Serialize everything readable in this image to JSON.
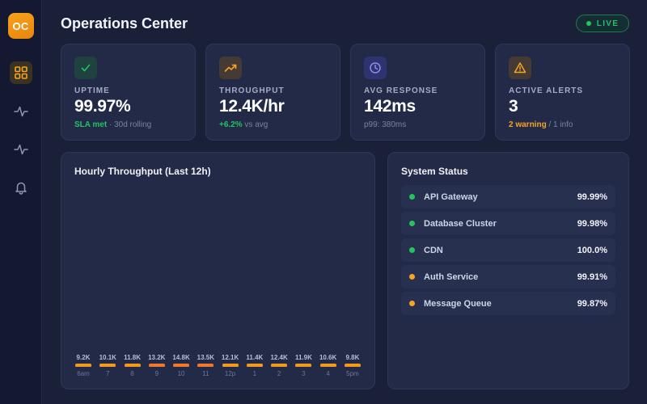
{
  "app": {
    "logo_text": "OC",
    "title": "Operations Center",
    "live_label": "LIVE"
  },
  "sidebar": {
    "items": [
      {
        "icon": "grid-icon",
        "active": true
      },
      {
        "icon": "activity-icon",
        "active": false
      },
      {
        "icon": "activity-icon",
        "active": false
      },
      {
        "icon": "bell-icon",
        "active": false
      }
    ]
  },
  "cards": [
    {
      "icon": "check-icon",
      "label": "UPTIME",
      "value": "99.97%",
      "sub_highlight": "SLA met",
      "sub_rest": " · 30d rolling",
      "highlight_color": "#22c55e"
    },
    {
      "icon": "trending-up-icon",
      "label": "THROUGHPUT",
      "value": "12.4K/hr",
      "sub_highlight": "+6.2%",
      "sub_rest": " vs avg",
      "highlight_color": "#22c55e"
    },
    {
      "icon": "clock-icon",
      "label": "AVG RESPONSE",
      "value": "142ms",
      "sub_highlight": "",
      "sub_rest": "p99: 380ms"
    },
    {
      "icon": "alert-triangle-icon",
      "label": "ACTIVE ALERTS",
      "value": "3",
      "sub_highlight": "2 warning",
      "sub_rest": " / 1 info",
      "highlight_color": "#f5a524"
    }
  ],
  "chart": {
    "title": "Hourly Throughput (Last 12h)"
  },
  "chart_data": {
    "type": "bar",
    "title": "Hourly Throughput (Last 12h)",
    "categories": [
      "6am",
      "7",
      "8",
      "9",
      "10",
      "11",
      "12p",
      "1",
      "2",
      "3",
      "4",
      "5pm"
    ],
    "values": [
      9.2,
      10.1,
      11.8,
      13.2,
      14.8,
      13.5,
      12.1,
      11.4,
      12.4,
      11.9,
      10.6,
      9.8
    ],
    "value_labels": [
      "9.2K",
      "10.1K",
      "11.8K",
      "13.2K",
      "14.8K",
      "13.5K",
      "12.1K",
      "11.4K",
      "12.4K",
      "11.9K",
      "10.6K",
      "9.8K"
    ],
    "unit": "K requests/hr",
    "xlabel": "",
    "ylabel": "",
    "grid": false,
    "legend": "none",
    "bar_colors": [
      "#f39a1c",
      "#f39a1c",
      "#f39a1c",
      "#f0782c",
      "#f0782c",
      "#f0782c",
      "#f39a1c",
      "#f39a1c",
      "#f39a1c",
      "#f39a1c",
      "#f39a1c",
      "#f39a1c"
    ]
  },
  "system_status": {
    "title": "System Status",
    "services": [
      {
        "name": "API Gateway",
        "value": "99.99%",
        "status": "healthy",
        "color": "#22c55e"
      },
      {
        "name": "Database Cluster",
        "value": "99.98%",
        "status": "healthy",
        "color": "#22c55e"
      },
      {
        "name": "CDN",
        "value": "100.0%",
        "status": "healthy",
        "color": "#22c55e"
      },
      {
        "name": "Auth Service",
        "value": "99.91%",
        "status": "warning",
        "color": "#f5a524"
      },
      {
        "name": "Message Queue",
        "value": "99.87%",
        "status": "warning",
        "color": "#f5a524"
      }
    ]
  }
}
